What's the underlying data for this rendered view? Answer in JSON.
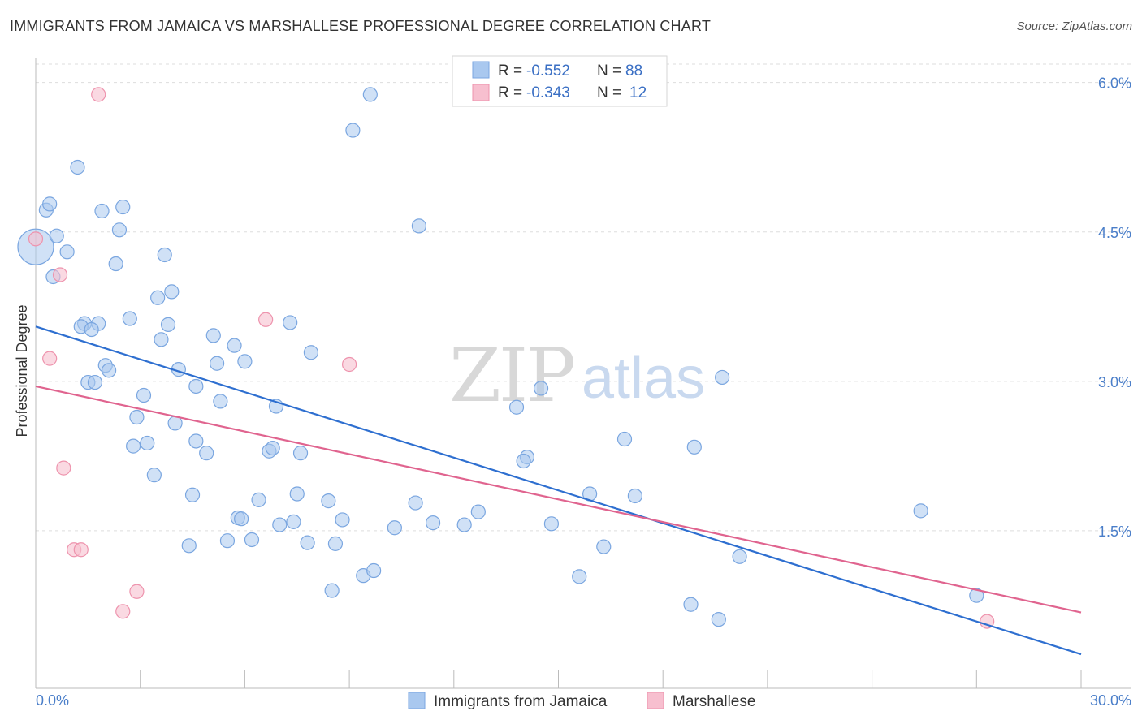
{
  "title": "IMMIGRANTS FROM JAMAICA VS MARSHALLESE PROFESSIONAL DEGREE CORRELATION CHART",
  "source": "Source: ZipAtlas.com",
  "watermark": {
    "zip": "ZIP",
    "atlas": "atlas"
  },
  "colors": {
    "blue_fill": "#a9c8ef",
    "blue_stroke": "#7aa6e0",
    "blue_line": "#2e6fd0",
    "pink_fill": "#f7bfcf",
    "pink_stroke": "#ee93ad",
    "pink_line": "#e0648f",
    "grid": "#dddddd",
    "tick_text": "#4a7ec9"
  },
  "legend": {
    "rows": [
      {
        "r_label": "R = ",
        "r_value": "-0.552",
        "n_label": "N = ",
        "n_value": "88"
      },
      {
        "r_label": "R = ",
        "r_value": "-0.343",
        "n_label": "N = ",
        "n_value": "12"
      }
    ]
  },
  "chart_data": {
    "type": "scatter",
    "title": "IMMIGRANTS FROM JAMAICA VS MARSHALLESE PROFESSIONAL DEGREE CORRELATION CHART",
    "xlabel": "",
    "ylabel": "Professional Degree",
    "xlim": [
      0,
      30
    ],
    "ylim": [
      0,
      6.25
    ],
    "x_tick_labels": [
      "0.0%",
      "30.0%"
    ],
    "y_ticks": [
      1.5,
      3.0,
      4.5,
      6.0
    ],
    "y_tick_labels": [
      "1.5%",
      "3.0%",
      "4.5%",
      "6.0%"
    ],
    "grid": true,
    "legend_position": "top-center",
    "series": [
      {
        "name": "Immigrants from Jamaica",
        "color": "#a9c8ef",
        "trend": {
          "x": [
            0,
            30
          ],
          "y": [
            3.55,
            0.26
          ]
        },
        "points": [
          {
            "x": 0.0,
            "y": 4.35,
            "size": "large"
          },
          {
            "x": 0.3,
            "y": 4.72
          },
          {
            "x": 0.4,
            "y": 4.78
          },
          {
            "x": 1.2,
            "y": 5.15
          },
          {
            "x": 0.6,
            "y": 4.46
          },
          {
            "x": 0.9,
            "y": 4.3
          },
          {
            "x": 0.5,
            "y": 4.05
          },
          {
            "x": 1.9,
            "y": 4.71
          },
          {
            "x": 2.5,
            "y": 4.75
          },
          {
            "x": 2.4,
            "y": 4.52
          },
          {
            "x": 2.3,
            "y": 4.18
          },
          {
            "x": 3.7,
            "y": 4.27
          },
          {
            "x": 1.4,
            "y": 3.58
          },
          {
            "x": 1.8,
            "y": 3.58
          },
          {
            "x": 1.3,
            "y": 3.55
          },
          {
            "x": 1.6,
            "y": 3.52
          },
          {
            "x": 2.7,
            "y": 3.63
          },
          {
            "x": 3.5,
            "y": 3.84
          },
          {
            "x": 3.9,
            "y": 3.9
          },
          {
            "x": 3.8,
            "y": 3.57
          },
          {
            "x": 3.6,
            "y": 3.42
          },
          {
            "x": 5.1,
            "y": 3.46
          },
          {
            "x": 5.7,
            "y": 3.36
          },
          {
            "x": 6.0,
            "y": 3.2
          },
          {
            "x": 5.2,
            "y": 3.18
          },
          {
            "x": 2.0,
            "y": 3.16
          },
          {
            "x": 2.1,
            "y": 3.11
          },
          {
            "x": 4.1,
            "y": 3.12
          },
          {
            "x": 1.5,
            "y": 2.99
          },
          {
            "x": 1.7,
            "y": 2.99
          },
          {
            "x": 4.6,
            "y": 2.95
          },
          {
            "x": 3.1,
            "y": 2.86
          },
          {
            "x": 5.3,
            "y": 2.8
          },
          {
            "x": 6.9,
            "y": 2.75
          },
          {
            "x": 2.9,
            "y": 2.64
          },
          {
            "x": 4.0,
            "y": 2.58
          },
          {
            "x": 4.6,
            "y": 2.4
          },
          {
            "x": 3.2,
            "y": 2.38
          },
          {
            "x": 2.8,
            "y": 2.35
          },
          {
            "x": 4.9,
            "y": 2.28
          },
          {
            "x": 6.7,
            "y": 2.3
          },
          {
            "x": 6.8,
            "y": 2.33
          },
          {
            "x": 7.6,
            "y": 2.28
          },
          {
            "x": 3.4,
            "y": 2.06
          },
          {
            "x": 4.5,
            "y": 1.86
          },
          {
            "x": 6.4,
            "y": 1.81
          },
          {
            "x": 7.5,
            "y": 1.87
          },
          {
            "x": 8.4,
            "y": 1.8
          },
          {
            "x": 10.9,
            "y": 1.78
          },
          {
            "x": 5.8,
            "y": 1.63
          },
          {
            "x": 5.9,
            "y": 1.62
          },
          {
            "x": 7.0,
            "y": 1.56
          },
          {
            "x": 7.4,
            "y": 1.59
          },
          {
            "x": 8.8,
            "y": 1.61
          },
          {
            "x": 10.3,
            "y": 1.53
          },
          {
            "x": 11.4,
            "y": 1.58
          },
          {
            "x": 12.3,
            "y": 1.56
          },
          {
            "x": 12.7,
            "y": 1.69
          },
          {
            "x": 4.4,
            "y": 1.35
          },
          {
            "x": 5.5,
            "y": 1.4
          },
          {
            "x": 6.2,
            "y": 1.41
          },
          {
            "x": 7.8,
            "y": 1.38
          },
          {
            "x": 8.6,
            "y": 1.37
          },
          {
            "x": 8.5,
            "y": 0.9
          },
          {
            "x": 9.4,
            "y": 1.05
          },
          {
            "x": 9.7,
            "y": 1.1
          },
          {
            "x": 14.8,
            "y": 1.57
          },
          {
            "x": 15.6,
            "y": 1.04
          },
          {
            "x": 16.3,
            "y": 1.34
          },
          {
            "x": 9.6,
            "y": 5.88
          },
          {
            "x": 9.1,
            "y": 5.52
          },
          {
            "x": 11.0,
            "y": 4.56
          },
          {
            "x": 7.3,
            "y": 3.59
          },
          {
            "x": 7.9,
            "y": 3.29
          },
          {
            "x": 14.5,
            "y": 2.93
          },
          {
            "x": 13.8,
            "y": 2.74
          },
          {
            "x": 14.1,
            "y": 2.24
          },
          {
            "x": 14.0,
            "y": 2.2
          },
          {
            "x": 15.9,
            "y": 1.87
          },
          {
            "x": 16.9,
            "y": 2.42
          },
          {
            "x": 17.2,
            "y": 1.85
          },
          {
            "x": 18.9,
            "y": 2.34
          },
          {
            "x": 19.7,
            "y": 3.04
          },
          {
            "x": 20.2,
            "y": 1.24
          },
          {
            "x": 18.8,
            "y": 0.76
          },
          {
            "x": 19.6,
            "y": 0.61
          },
          {
            "x": 25.4,
            "y": 1.7
          },
          {
            "x": 27.0,
            "y": 0.85
          }
        ]
      },
      {
        "name": "Marshallese",
        "color": "#f7bfcf",
        "trend": {
          "x": [
            0,
            30
          ],
          "y": [
            2.95,
            0.68
          ]
        },
        "points": [
          {
            "x": 1.8,
            "y": 5.88
          },
          {
            "x": 0.0,
            "y": 4.43
          },
          {
            "x": 0.7,
            "y": 4.07
          },
          {
            "x": 0.4,
            "y": 3.23
          },
          {
            "x": 6.6,
            "y": 3.62
          },
          {
            "x": 9.0,
            "y": 3.17
          },
          {
            "x": 0.8,
            "y": 2.13
          },
          {
            "x": 1.1,
            "y": 1.31
          },
          {
            "x": 1.3,
            "y": 1.31
          },
          {
            "x": 2.9,
            "y": 0.89
          },
          {
            "x": 2.5,
            "y": 0.69
          },
          {
            "x": 27.3,
            "y": 0.59
          }
        ]
      }
    ]
  }
}
